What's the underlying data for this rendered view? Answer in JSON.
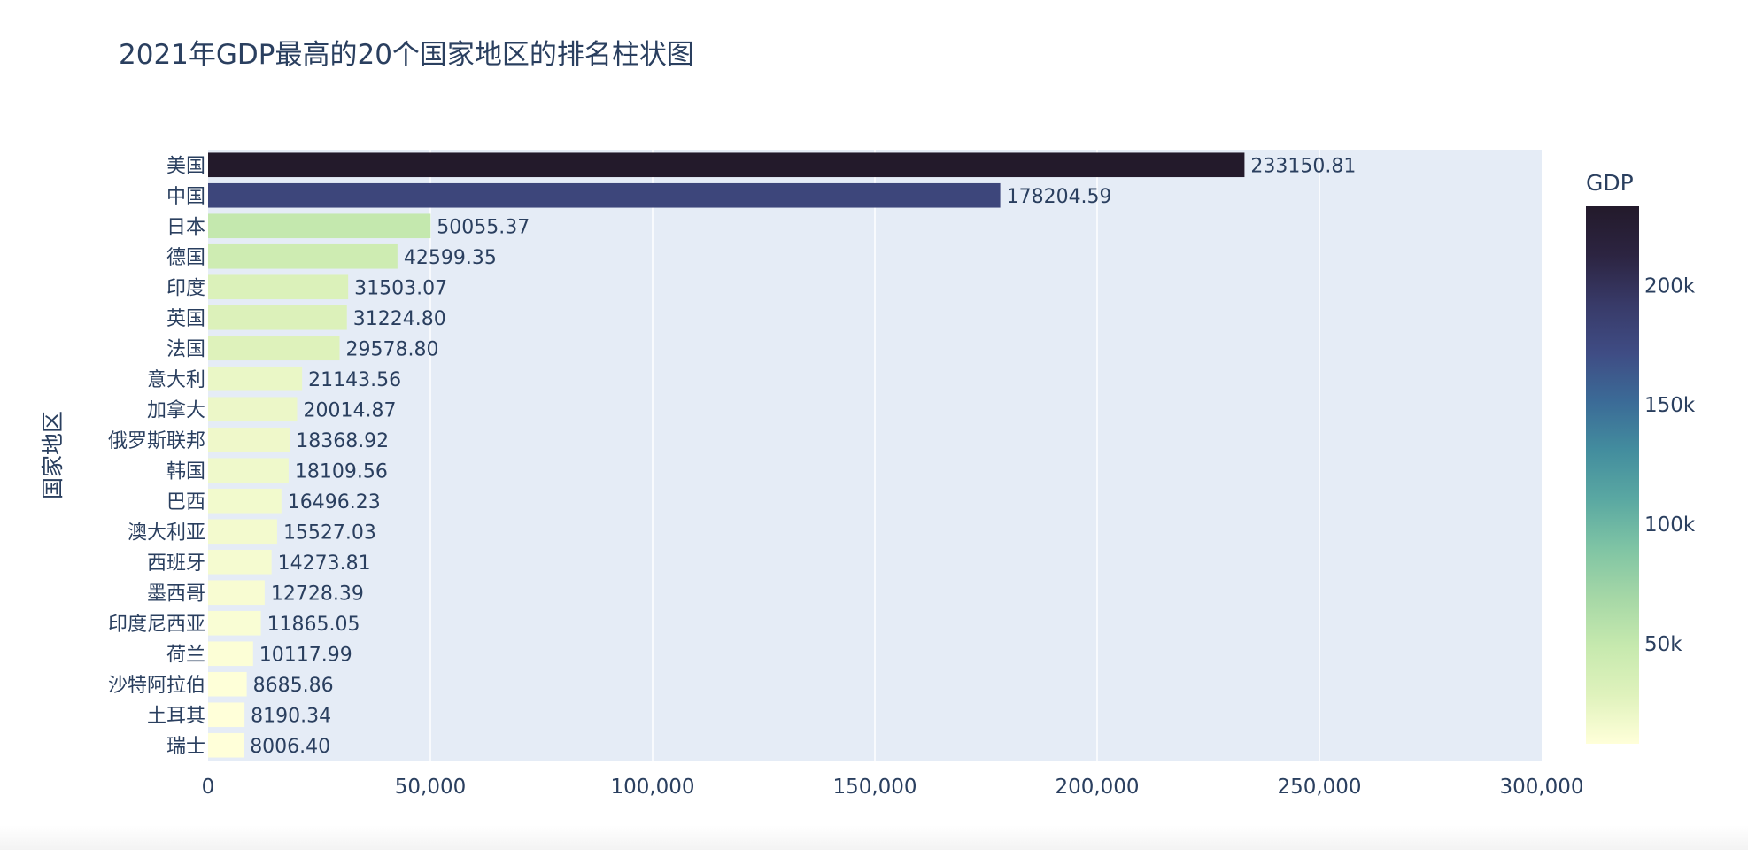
{
  "chart_data": {
    "type": "bar",
    "orientation": "horizontal",
    "title": "2021年GDP最高的20个国家地区的排名柱状图",
    "ylabel": "国家地区",
    "xlabel": "",
    "xlim": [
      0,
      300000
    ],
    "x_ticks": [
      0,
      50000,
      100000,
      150000,
      200000,
      250000,
      300000
    ],
    "x_tick_labels": [
      "0",
      "50,000",
      "100,000",
      "150,000",
      "200,000",
      "250,000",
      "300,000"
    ],
    "grid": true,
    "categories": [
      "美国",
      "中国",
      "日本",
      "德国",
      "印度",
      "英国",
      "法国",
      "意大利",
      "加拿大",
      "俄罗斯联邦",
      "韩国",
      "巴西",
      "澳大利亚",
      "西班牙",
      "墨西哥",
      "印度尼西亚",
      "荷兰",
      "沙特阿拉伯",
      "土耳其",
      "瑞士"
    ],
    "values": [
      233150.81,
      178204.59,
      50055.37,
      42599.35,
      31503.07,
      31224.8,
      29578.8,
      21143.56,
      20014.87,
      18368.92,
      18109.56,
      16496.23,
      15527.03,
      14273.81,
      12728.39,
      11865.05,
      10117.99,
      8685.86,
      8190.34,
      8006.4
    ],
    "value_labels": [
      "233150.81",
      "178204.59",
      "50055.37",
      "42599.35",
      "31503.07",
      "31224.80",
      "29578.80",
      "21143.56",
      "20014.87",
      "18368.92",
      "18109.56",
      "16496.23",
      "15527.03",
      "14273.81",
      "12728.39",
      "11865.05",
      "10117.99",
      "8685.86",
      "8190.34",
      "8006.40"
    ],
    "colorbar": {
      "title": "GDP",
      "colorscale": "Emrld-like (light yellow to dark navy)",
      "tick_values": [
        50000,
        100000,
        150000,
        200000
      ],
      "tick_labels": [
        "50k",
        "100k",
        "150k",
        "200k"
      ],
      "range": [
        8006.4,
        233150.81
      ]
    },
    "colors": {
      "plot_background": "#e5ecf6",
      "grid": "#ffffff",
      "text": "#2a3f5f",
      "scale": [
        "#ffffd9",
        "#dff2bc",
        "#c6e9ae",
        "#a5d7a6",
        "#7fc4a4",
        "#5aa8a2",
        "#438d9e",
        "#3b6b97",
        "#3f4c84",
        "#383a68",
        "#2c2441",
        "#231a2b"
      ]
    }
  }
}
